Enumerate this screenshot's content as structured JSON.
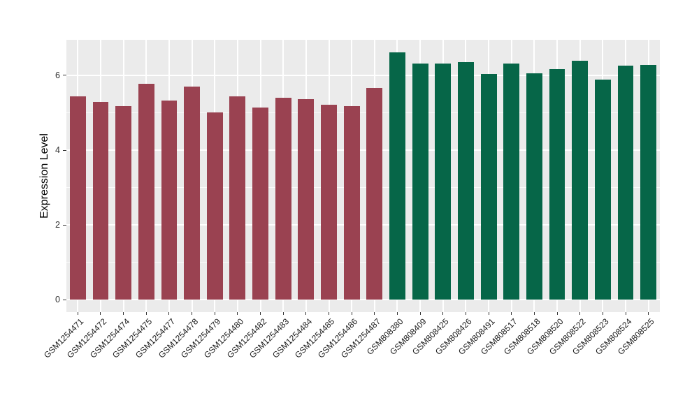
{
  "figure": {
    "title": "",
    "background_color": "#FFFFFF",
    "panel_background_color": "#EBEBEB",
    "gridline_color": "#FFFFFF"
  },
  "chart_data": {
    "type": "bar",
    "title": "",
    "xlabel": "",
    "ylabel": "Expression Level",
    "categories": [
      "GSM1254471",
      "GSM1254472",
      "GSM1254474",
      "GSM1254475",
      "GSM1254477",
      "GSM1254478",
      "GSM1254479",
      "GSM1254480",
      "GSM1254482",
      "GSM1254483",
      "GSM1254484",
      "GSM1254485",
      "GSM1254486",
      "GSM1254487",
      "GSM808380",
      "GSM808409",
      "GSM808425",
      "GSM808426",
      "GSM808491",
      "GSM808517",
      "GSM808518",
      "GSM808520",
      "GSM808522",
      "GSM808523",
      "GSM808524",
      "GSM808525"
    ],
    "values": [
      5.43,
      5.29,
      5.17,
      5.78,
      5.33,
      5.7,
      5.0,
      5.43,
      5.14,
      5.4,
      5.37,
      5.21,
      5.17,
      5.67,
      6.62,
      6.32,
      6.32,
      6.36,
      6.04,
      6.31,
      6.05,
      6.16,
      6.39,
      5.89,
      6.26,
      6.28
    ],
    "groups": [
      "group1",
      "group1",
      "group1",
      "group1",
      "group1",
      "group1",
      "group1",
      "group1",
      "group1",
      "group1",
      "group1",
      "group1",
      "group1",
      "group1",
      "group2",
      "group2",
      "group2",
      "group2",
      "group2",
      "group2",
      "group2",
      "group2",
      "group2",
      "group2",
      "group2",
      "group2"
    ],
    "group_colors": {
      "group1": "#9A4251",
      "group2": "#066648"
    },
    "ylim": [
      0,
      6.95
    ],
    "panel_value_range": [
      -0.33,
      6.95
    ],
    "yticks": [
      "0",
      "2",
      "4",
      "6"
    ],
    "minor_yticks": [
      1,
      3,
      5
    ],
    "bar_width_fraction": 0.7,
    "x_tick_angle": 45,
    "grid": "white major (0,2,4,6) + minor (1,3,5) horizontal lines and vertical lines at each category center on gray panel",
    "legend": false
  }
}
